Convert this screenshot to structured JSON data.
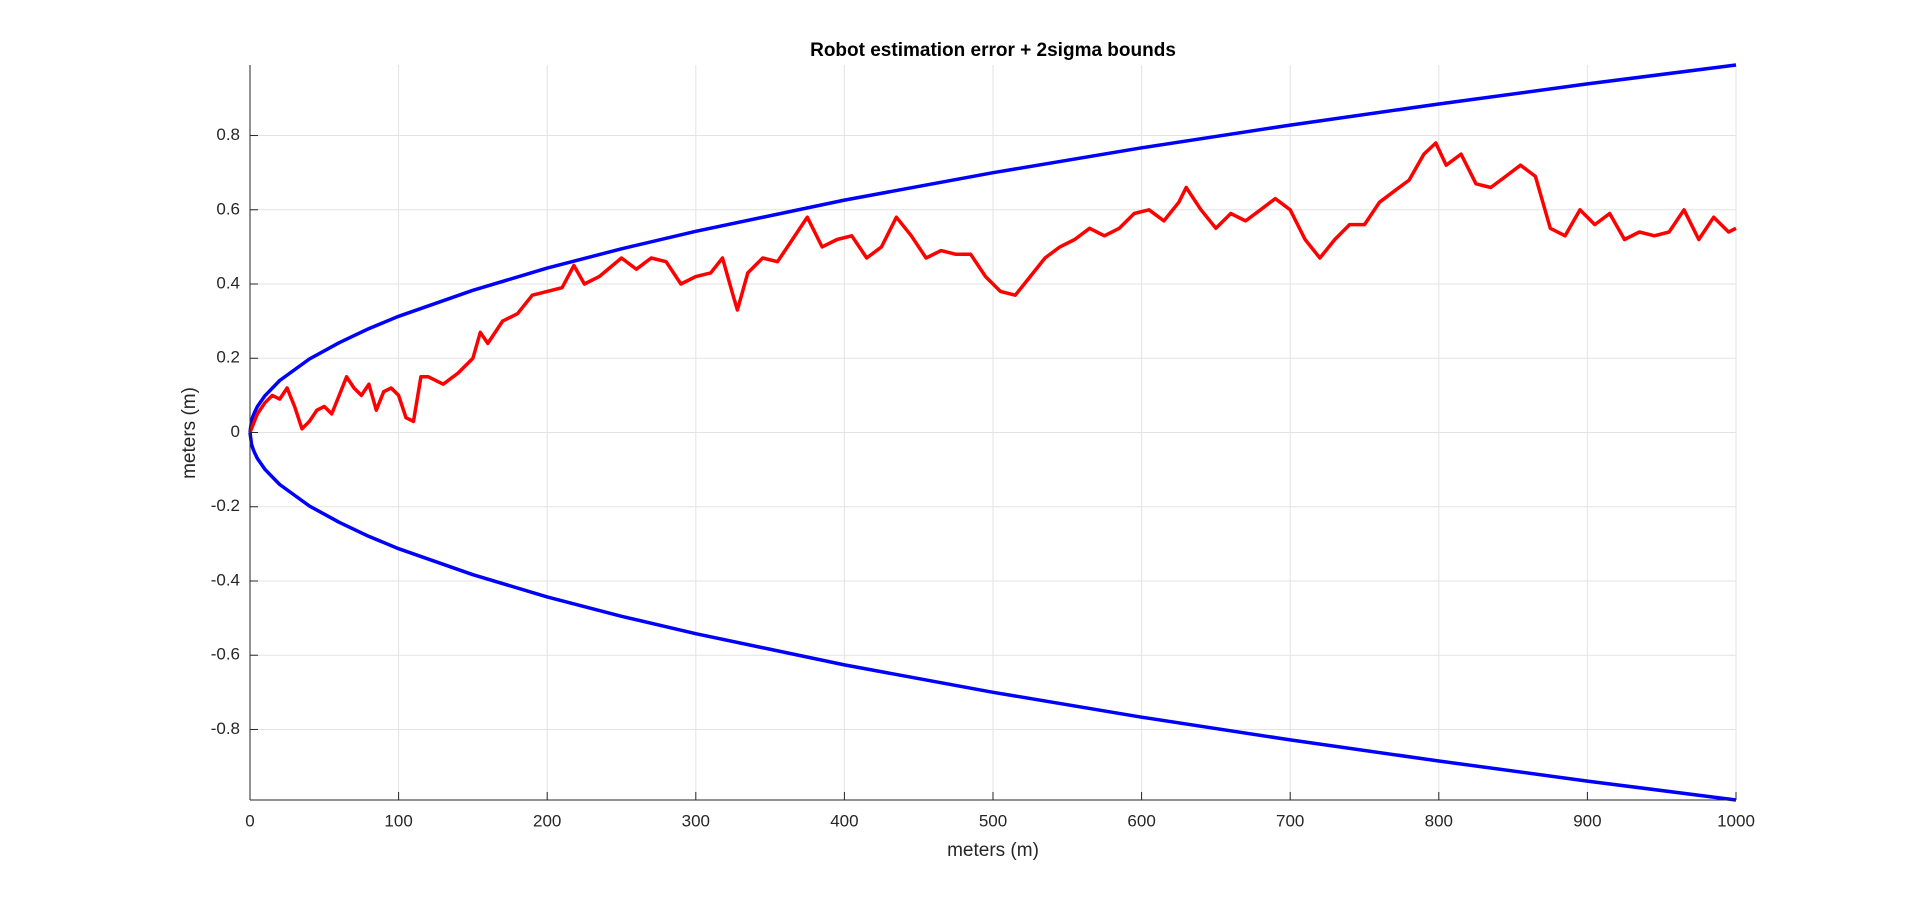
{
  "chart_data": {
    "type": "line",
    "title": "Robot estimation error + 2sigma bounds",
    "x_label": "meters (m)",
    "y_label": "meters (m)",
    "xlim": [
      0,
      1000
    ],
    "ylim": [
      -0.99,
      0.99
    ],
    "xticks": [
      0,
      100,
      200,
      300,
      400,
      500,
      600,
      700,
      800,
      900,
      1000
    ],
    "yticks": [
      -0.8,
      -0.6,
      -0.4,
      -0.2,
      0,
      0.2,
      0.4,
      0.6,
      0.8
    ],
    "grid": true,
    "series": [
      {
        "color": "#0000ff",
        "x": [
          0,
          1,
          2,
          3,
          5,
          10,
          20,
          40,
          60,
          80,
          100,
          150,
          200,
          250,
          300,
          400,
          500,
          600,
          700,
          800,
          900,
          1000
        ],
        "values": [
          0,
          0.031,
          0.044,
          0.054,
          0.07,
          0.099,
          0.14,
          0.198,
          0.242,
          0.28,
          0.313,
          0.383,
          0.443,
          0.495,
          0.542,
          0.626,
          0.7,
          0.767,
          0.828,
          0.885,
          0.939,
          0.99
        ]
      },
      {
        "color": "#0000ff",
        "x": [
          0,
          1,
          2,
          3,
          5,
          10,
          20,
          40,
          60,
          80,
          100,
          150,
          200,
          250,
          300,
          400,
          500,
          600,
          700,
          800,
          900,
          1000
        ],
        "values": [
          0,
          -0.031,
          -0.044,
          -0.054,
          -0.07,
          -0.099,
          -0.14,
          -0.198,
          -0.242,
          -0.28,
          -0.313,
          -0.383,
          -0.443,
          -0.495,
          -0.542,
          -0.626,
          -0.7,
          -0.767,
          -0.828,
          -0.885,
          -0.939,
          -0.99
        ]
      },
      {
        "color": "#ff0000",
        "x": [
          0,
          5,
          10,
          15,
          20,
          25,
          30,
          35,
          40,
          45,
          50,
          55,
          60,
          65,
          70,
          75,
          80,
          85,
          90,
          95,
          100,
          105,
          110,
          115,
          120,
          130,
          140,
          150,
          155,
          160,
          170,
          180,
          190,
          200,
          210,
          218,
          225,
          235,
          250,
          260,
          270,
          280,
          290,
          300,
          310,
          318,
          325,
          328,
          335,
          345,
          355,
          365,
          375,
          385,
          395,
          405,
          415,
          425,
          435,
          445,
          455,
          465,
          475,
          485,
          495,
          505,
          515,
          525,
          535,
          545,
          555,
          565,
          575,
          585,
          595,
          605,
          615,
          625,
          630,
          640,
          650,
          660,
          670,
          680,
          690,
          700,
          710,
          720,
          730,
          740,
          750,
          760,
          770,
          780,
          790,
          798,
          805,
          815,
          825,
          835,
          845,
          855,
          865,
          875,
          885,
          895,
          905,
          915,
          925,
          935,
          945,
          955,
          965,
          975,
          985,
          995,
          1000
        ],
        "values": [
          0,
          0.05,
          0.08,
          0.1,
          0.09,
          0.12,
          0.07,
          0.01,
          0.03,
          0.06,
          0.07,
          0.05,
          0.1,
          0.15,
          0.12,
          0.1,
          0.13,
          0.06,
          0.11,
          0.12,
          0.1,
          0.04,
          0.03,
          0.15,
          0.15,
          0.13,
          0.16,
          0.2,
          0.27,
          0.24,
          0.3,
          0.32,
          0.37,
          0.38,
          0.39,
          0.45,
          0.4,
          0.42,
          0.47,
          0.44,
          0.47,
          0.46,
          0.4,
          0.42,
          0.43,
          0.47,
          0.37,
          0.33,
          0.43,
          0.47,
          0.46,
          0.52,
          0.58,
          0.5,
          0.52,
          0.53,
          0.47,
          0.5,
          0.58,
          0.53,
          0.47,
          0.49,
          0.48,
          0.48,
          0.42,
          0.38,
          0.37,
          0.42,
          0.47,
          0.5,
          0.52,
          0.55,
          0.53,
          0.55,
          0.59,
          0.6,
          0.57,
          0.62,
          0.66,
          0.6,
          0.55,
          0.59,
          0.57,
          0.6,
          0.63,
          0.6,
          0.52,
          0.47,
          0.52,
          0.56,
          0.56,
          0.62,
          0.65,
          0.68,
          0.75,
          0.78,
          0.72,
          0.75,
          0.67,
          0.66,
          0.69,
          0.72,
          0.69,
          0.55,
          0.53,
          0.6,
          0.56,
          0.59,
          0.52,
          0.54,
          0.53,
          0.54,
          0.6,
          0.52,
          0.58,
          0.54,
          0.55
        ]
      }
    ]
  }
}
